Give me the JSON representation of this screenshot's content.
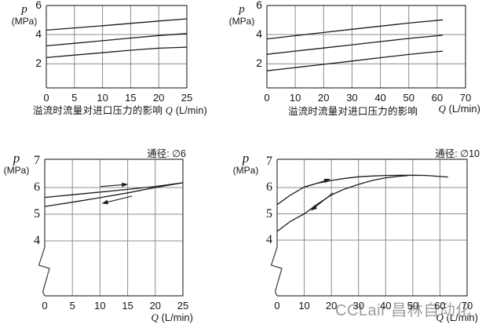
{
  "watermark": "CCLair 昌林自动化",
  "colors": {
    "background": "#ffffff",
    "curve": "#1b1b1b",
    "grid": "#8c8c8c",
    "border": "#3a3a3a",
    "watermark": "#9e9e9e"
  },
  "chart_data": [
    {
      "id": "top-left",
      "type": "line",
      "title": "",
      "caption": "溢流时流量对进口压力的影响",
      "ylabel_symbol": "p",
      "ylabel_unit": "(MPa)",
      "xunit_symbol": "Q",
      "xunit_rest": "(L/min)",
      "xlim": [
        0,
        25
      ],
      "ylim": [
        0.4,
        6
      ],
      "x_ticks": [
        0,
        5,
        10,
        15,
        20,
        25
      ],
      "y_ticks": [
        2,
        4,
        6
      ],
      "grid": true,
      "axis_break": false,
      "legend": "none",
      "series": [
        {
          "name": "setting-high",
          "x": [
            0,
            5,
            10,
            15,
            20,
            25
          ],
          "y": [
            4.3,
            4.45,
            4.6,
            4.76,
            4.92,
            5.07
          ]
        },
        {
          "name": "setting-mid",
          "x": [
            0,
            5,
            10,
            15,
            20,
            25
          ],
          "y": [
            3.23,
            3.4,
            3.58,
            3.76,
            3.93,
            4.07
          ]
        },
        {
          "name": "setting-low",
          "x": [
            0,
            5,
            10,
            15,
            20,
            25
          ],
          "y": [
            2.43,
            2.6,
            2.76,
            2.93,
            3.07,
            3.14
          ]
        }
      ],
      "arrows": []
    },
    {
      "id": "top-right",
      "type": "line",
      "title": "",
      "caption": "溢流时流量对进口压力的影响",
      "ylabel_symbol": "p",
      "ylabel_unit": "(MPa)",
      "xunit_symbol": "Q",
      "xunit_rest": "(L/min)",
      "xlim": [
        0,
        70
      ],
      "ylim": [
        0.4,
        6
      ],
      "x_ticks": [
        0,
        10,
        20,
        30,
        40,
        50,
        60,
        70
      ],
      "y_ticks": [
        2,
        4,
        6
      ],
      "grid": true,
      "axis_break": false,
      "legend": "none",
      "series": [
        {
          "name": "setting-high",
          "x": [
            0,
            10,
            20,
            30,
            40,
            50,
            62
          ],
          "y": [
            3.7,
            3.92,
            4.14,
            4.36,
            4.57,
            4.78,
            5.0
          ]
        },
        {
          "name": "setting-mid",
          "x": [
            0,
            10,
            20,
            30,
            40,
            50,
            62
          ],
          "y": [
            2.65,
            2.87,
            3.08,
            3.3,
            3.52,
            3.73,
            3.95
          ]
        },
        {
          "name": "setting-low",
          "x": [
            0,
            10,
            20,
            30,
            40,
            50,
            62
          ],
          "y": [
            1.53,
            1.75,
            1.97,
            2.19,
            2.42,
            2.64,
            2.87
          ]
        }
      ],
      "arrows": []
    },
    {
      "id": "bottom-left",
      "type": "line",
      "title": "通径: ∅6",
      "caption": "",
      "ylabel_symbol": "p",
      "ylabel_unit": "(MPa)",
      "xunit_symbol": "Q",
      "xunit_rest": "(L/min)",
      "xlim": [
        0,
        25
      ],
      "ylim": [
        1.9,
        7.1
      ],
      "x_ticks": [
        0,
        5,
        10,
        15,
        20,
        25
      ],
      "y_ticks": [
        4,
        5,
        6,
        7
      ],
      "grid": true,
      "axis_break": true,
      "legend": "none",
      "series": [
        {
          "name": "forward",
          "x": [
            0,
            5,
            10,
            15,
            20,
            25
          ],
          "y": [
            5.63,
            5.73,
            5.83,
            5.93,
            6.04,
            6.18
          ]
        },
        {
          "name": "return",
          "x": [
            0,
            5,
            10,
            15,
            20,
            25
          ],
          "y": [
            5.29,
            5.45,
            5.62,
            5.8,
            6.0,
            6.18
          ]
        }
      ],
      "arrows": [
        {
          "x1": 10.1,
          "y1": 6.04,
          "x2": 15.1,
          "y2": 6.12,
          "direction": "right"
        },
        {
          "x1": 15.8,
          "y1": 5.68,
          "x2": 10.3,
          "y2": 5.4,
          "direction": "left"
        }
      ]
    },
    {
      "id": "bottom-right",
      "type": "line",
      "title": "通径: ∅10",
      "caption": "",
      "ylabel_symbol": "p",
      "ylabel_unit": "(MPa)",
      "xunit_symbol": "Q",
      "xunit_rest": "(L/min)",
      "xlim": [
        0,
        70
      ],
      "ylim": [
        1.9,
        7.1
      ],
      "x_ticks": [
        0,
        10,
        20,
        30,
        40,
        50,
        60,
        70
      ],
      "y_ticks": [
        4,
        5,
        6,
        7
      ],
      "grid": true,
      "axis_break": true,
      "legend": "none",
      "series": [
        {
          "name": "forward",
          "x": [
            0,
            5,
            10,
            15,
            20,
            25,
            30,
            35,
            40,
            50,
            55,
            63
          ],
          "y": [
            5.35,
            5.72,
            6.02,
            6.17,
            6.27,
            6.35,
            6.41,
            6.44,
            6.46,
            6.47,
            6.46,
            6.4
          ]
        },
        {
          "name": "return",
          "x": [
            0,
            5,
            10,
            15,
            20,
            25,
            30,
            35,
            40,
            45,
            48
          ],
          "y": [
            4.33,
            4.72,
            5.0,
            5.38,
            5.72,
            5.95,
            6.12,
            6.27,
            6.37,
            6.43,
            6.45
          ]
        }
      ],
      "arrows": [
        {
          "x1": 10.7,
          "y1": 6.03,
          "x2": 19.7,
          "y2": 6.33,
          "direction": "right-up"
        },
        {
          "x1": 20.5,
          "y1": 5.79,
          "x2": 12.4,
          "y2": 5.12,
          "direction": "left-down"
        }
      ]
    }
  ]
}
